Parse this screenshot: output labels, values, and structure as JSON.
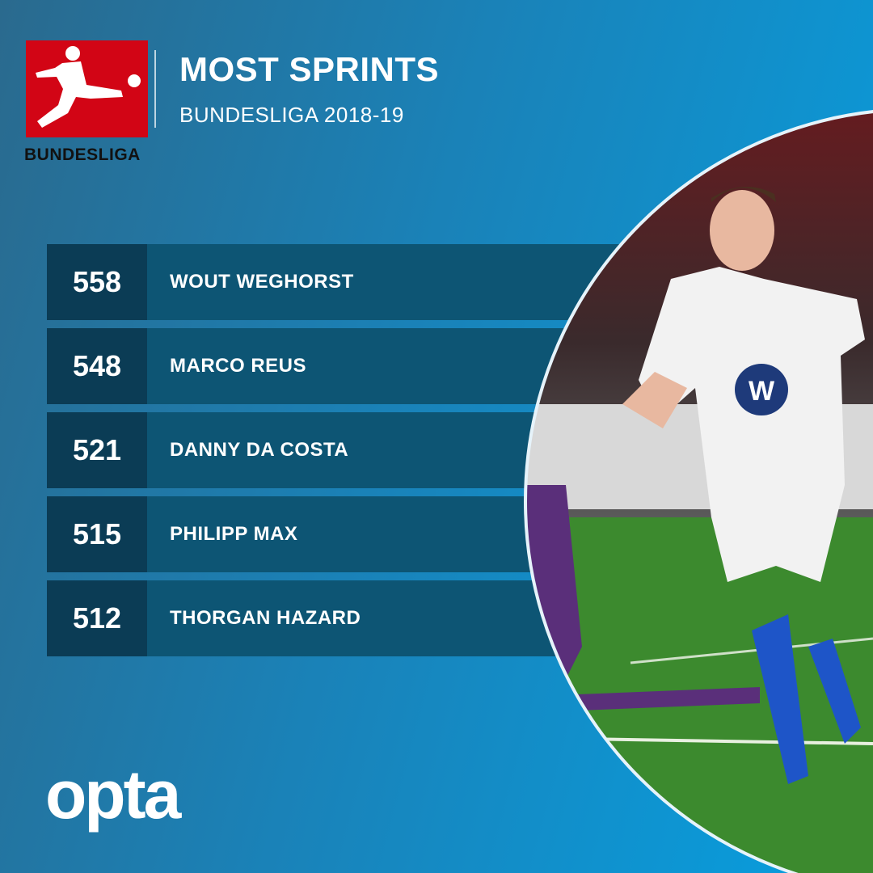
{
  "header": {
    "title": "MOST SPRINTS",
    "subtitle": "BUNDESLIGA 2018-19",
    "logo_text": "BUNDESLIGA"
  },
  "rows": [
    {
      "value": "558",
      "name": "WOUT WEGHORST"
    },
    {
      "value": "548",
      "name": "MARCO REUS"
    },
    {
      "value": "521",
      "name": "DANNY DA COSTA"
    },
    {
      "value": "515",
      "name": "PHILIPP MAX"
    },
    {
      "value": "512",
      "name": "THORGAN HAZARD"
    }
  ],
  "footer": {
    "brand": "opta"
  },
  "colors": {
    "logo_red": "#d20515",
    "number_cell": "#0b3c55",
    "name_cell": "#0d5574"
  }
}
